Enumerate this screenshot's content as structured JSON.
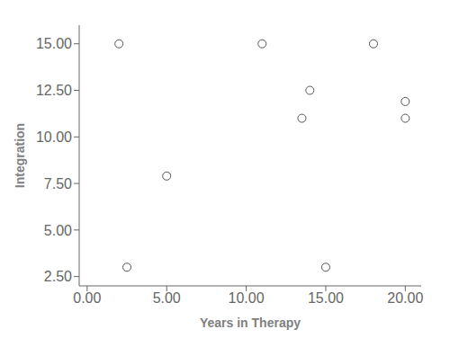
{
  "chart_data": {
    "type": "scatter",
    "x": [
      2,
      2.5,
      5,
      11,
      13.5,
      14,
      15,
      18,
      20,
      20
    ],
    "values": [
      15,
      3,
      7.9,
      15,
      11,
      12.5,
      3,
      15,
      11.9,
      11
    ],
    "xlabel": "Years in Therapy",
    "ylabel": "Integration",
    "xlim": [
      -0.5,
      21.0
    ],
    "ylim": [
      2.0,
      16.0
    ],
    "xticks": [
      {
        "value": 0,
        "label": "0.00"
      },
      {
        "value": 5,
        "label": "5.00"
      },
      {
        "value": 10,
        "label": "10.00"
      },
      {
        "value": 15,
        "label": "15.00"
      },
      {
        "value": 20,
        "label": "20.00"
      }
    ],
    "yticks": [
      {
        "value": 2.5,
        "label": "2.50"
      },
      {
        "value": 5,
        "label": "5.00"
      },
      {
        "value": 7.5,
        "label": "7.50"
      },
      {
        "value": 10,
        "label": "10.00"
      },
      {
        "value": 12.5,
        "label": "12.50"
      },
      {
        "value": 15,
        "label": "15.00"
      }
    ],
    "color": "#555555",
    "marker": "circle",
    "grid": false
  }
}
